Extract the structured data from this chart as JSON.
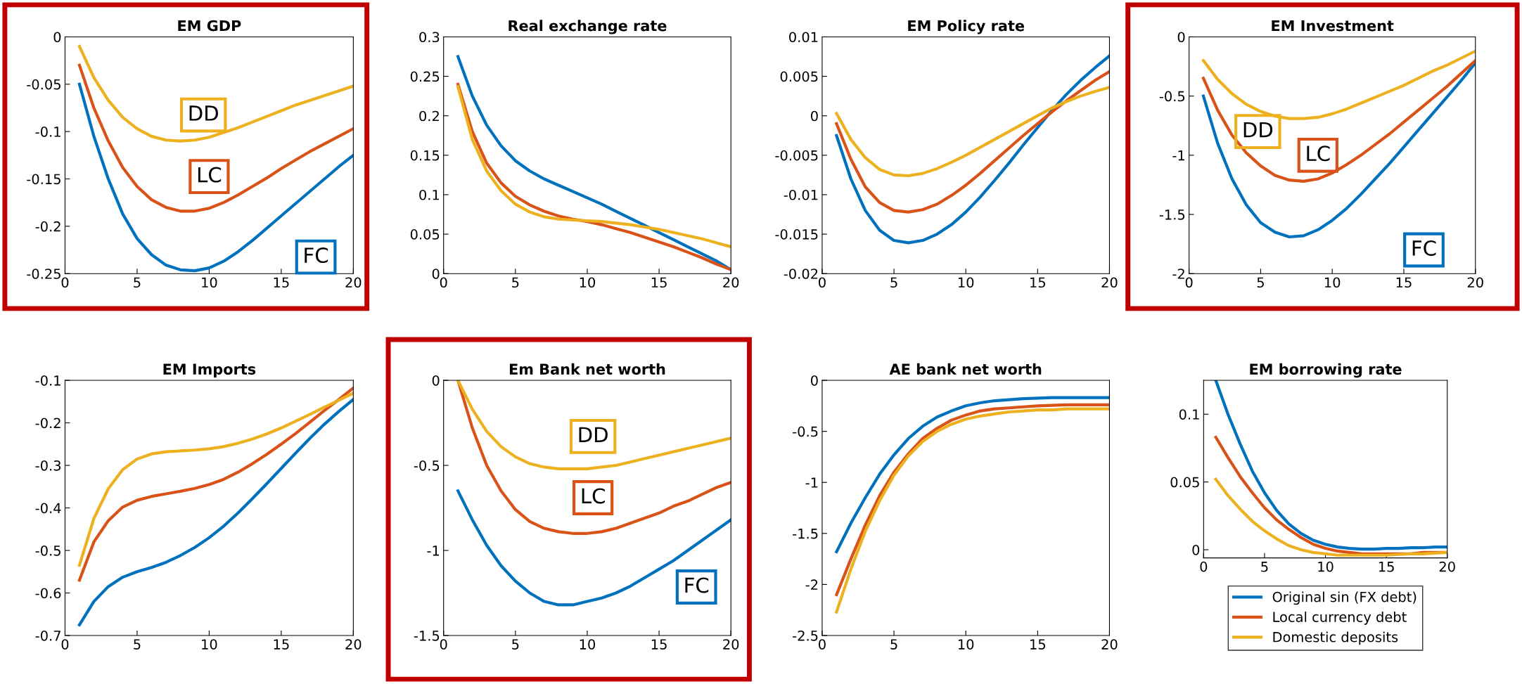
{
  "chart_data": [
    {
      "type": "line",
      "title": "EM GDP",
      "x": [
        1,
        2,
        3,
        4,
        5,
        6,
        7,
        8,
        9,
        10,
        11,
        12,
        13,
        14,
        15,
        16,
        17,
        18,
        19,
        20
      ],
      "xlim": [
        0,
        20
      ],
      "xticks": [
        0,
        5,
        10,
        15,
        20
      ],
      "ylim": [
        -0.25,
        0
      ],
      "yticks": [
        -0.25,
        -0.2,
        -0.15,
        -0.1,
        -0.05,
        0
      ],
      "series": [
        {
          "color": "#0072bd",
          "values": [
            -0.05,
            -0.105,
            -0.15,
            -0.187,
            -0.213,
            -0.23,
            -0.241,
            -0.246,
            -0.247,
            -0.244,
            -0.237,
            -0.227,
            -0.215,
            -0.202,
            -0.189,
            -0.176,
            -0.163,
            -0.15,
            -0.137,
            -0.125
          ]
        },
        {
          "color": "#d95319",
          "values": [
            -0.03,
            -0.075,
            -0.11,
            -0.138,
            -0.158,
            -0.172,
            -0.18,
            -0.184,
            -0.184,
            -0.181,
            -0.175,
            -0.167,
            -0.158,
            -0.149,
            -0.139,
            -0.13,
            -0.121,
            -0.113,
            -0.105,
            -0.097
          ]
        },
        {
          "color": "#edb120",
          "values": [
            -0.01,
            -0.043,
            -0.067,
            -0.085,
            -0.097,
            -0.105,
            -0.109,
            -0.11,
            -0.109,
            -0.106,
            -0.101,
            -0.096,
            -0.09,
            -0.084,
            -0.078,
            -0.072,
            -0.067,
            -0.062,
            -0.057,
            -0.052
          ]
        }
      ],
      "annotations": [
        "DD",
        "LC",
        "FC"
      ]
    },
    {
      "type": "line",
      "title": "Real exchange rate",
      "x": [
        1,
        2,
        3,
        4,
        5,
        6,
        7,
        8,
        9,
        10,
        11,
        12,
        13,
        14,
        15,
        16,
        17,
        18,
        19,
        20
      ],
      "xlim": [
        0,
        20
      ],
      "xticks": [
        0,
        5,
        10,
        15,
        20
      ],
      "ylim": [
        0,
        0.3
      ],
      "yticks": [
        0,
        0.05,
        0.1,
        0.15,
        0.2,
        0.25,
        0.3
      ],
      "series": [
        {
          "color": "#0072bd",
          "values": [
            0.275,
            0.225,
            0.188,
            0.162,
            0.143,
            0.13,
            0.12,
            0.112,
            0.104,
            0.096,
            0.088,
            0.079,
            0.07,
            0.061,
            0.052,
            0.043,
            0.034,
            0.025,
            0.016,
            0.005
          ]
        },
        {
          "color": "#d95319",
          "values": [
            0.24,
            0.18,
            0.14,
            0.115,
            0.098,
            0.087,
            0.079,
            0.073,
            0.069,
            0.066,
            0.062,
            0.057,
            0.052,
            0.046,
            0.04,
            0.034,
            0.027,
            0.02,
            0.012,
            0.005
          ]
        },
        {
          "color": "#edb120",
          "values": [
            0.237,
            0.17,
            0.13,
            0.105,
            0.088,
            0.078,
            0.072,
            0.069,
            0.068,
            0.067,
            0.066,
            0.064,
            0.062,
            0.059,
            0.056,
            0.052,
            0.048,
            0.044,
            0.039,
            0.034
          ]
        }
      ]
    },
    {
      "type": "line",
      "title": "EM Policy rate",
      "x": [
        1,
        2,
        3,
        4,
        5,
        6,
        7,
        8,
        9,
        10,
        11,
        12,
        13,
        14,
        15,
        16,
        17,
        18,
        19,
        20
      ],
      "xlim": [
        0,
        20
      ],
      "xticks": [
        0,
        5,
        10,
        15,
        20
      ],
      "ylim": [
        -0.02,
        0.01
      ],
      "yticks": [
        -0.02,
        -0.015,
        -0.01,
        -0.005,
        0,
        0.005,
        0.01
      ],
      "series": [
        {
          "color": "#0072bd",
          "values": [
            -0.0025,
            -0.008,
            -0.012,
            -0.0145,
            -0.0158,
            -0.0161,
            -0.0158,
            -0.015,
            -0.0138,
            -0.0122,
            -0.0103,
            -0.0082,
            -0.006,
            -0.0037,
            -0.0015,
            0.0007,
            0.0027,
            0.0045,
            0.0061,
            0.0076
          ]
        },
        {
          "color": "#d95319",
          "values": [
            -0.001,
            -0.0055,
            -0.009,
            -0.011,
            -0.012,
            -0.0122,
            -0.0119,
            -0.0112,
            -0.0101,
            -0.0088,
            -0.0073,
            -0.0057,
            -0.0041,
            -0.0025,
            -0.001,
            0.0005,
            0.0019,
            0.0032,
            0.0045,
            0.0056
          ]
        },
        {
          "color": "#edb120",
          "values": [
            0.0003,
            -0.003,
            -0.0053,
            -0.0068,
            -0.0075,
            -0.0076,
            -0.0073,
            -0.0067,
            -0.0059,
            -0.005,
            -0.004,
            -0.003,
            -0.002,
            -0.001,
            0.0,
            0.001,
            0.0018,
            0.0025,
            0.0031,
            0.0036
          ]
        }
      ]
    },
    {
      "type": "line",
      "title": "EM Investment",
      "x": [
        1,
        2,
        3,
        4,
        5,
        6,
        7,
        8,
        9,
        10,
        11,
        12,
        13,
        14,
        15,
        16,
        17,
        18,
        19,
        20
      ],
      "xlim": [
        0,
        20
      ],
      "xticks": [
        0,
        5,
        10,
        15,
        20
      ],
      "ylim": [
        -2,
        0
      ],
      "yticks": [
        -2,
        -1.5,
        -1,
        -0.5,
        0
      ],
      "series": [
        {
          "color": "#0072bd",
          "values": [
            -0.5,
            -0.9,
            -1.2,
            -1.42,
            -1.57,
            -1.65,
            -1.69,
            -1.68,
            -1.63,
            -1.55,
            -1.45,
            -1.33,
            -1.2,
            -1.07,
            -0.93,
            -0.79,
            -0.65,
            -0.51,
            -0.37,
            -0.22
          ]
        },
        {
          "color": "#d95319",
          "values": [
            -0.35,
            -0.62,
            -0.83,
            -0.98,
            -1.09,
            -1.17,
            -1.21,
            -1.22,
            -1.2,
            -1.15,
            -1.08,
            -1.0,
            -0.91,
            -0.82,
            -0.72,
            -0.62,
            -0.52,
            -0.42,
            -0.31,
            -0.2
          ]
        },
        {
          "color": "#edb120",
          "values": [
            -0.2,
            -0.36,
            -0.48,
            -0.57,
            -0.63,
            -0.67,
            -0.69,
            -0.69,
            -0.68,
            -0.65,
            -0.61,
            -0.56,
            -0.51,
            -0.46,
            -0.41,
            -0.35,
            -0.29,
            -0.24,
            -0.18,
            -0.12
          ]
        }
      ],
      "annotations": [
        "DD",
        "LC",
        "FC"
      ]
    },
    {
      "type": "line",
      "title": "EM Imports",
      "x": [
        1,
        2,
        3,
        4,
        5,
        6,
        7,
        8,
        9,
        10,
        11,
        12,
        13,
        14,
        15,
        16,
        17,
        18,
        19,
        20
      ],
      "xlim": [
        0,
        20
      ],
      "xticks": [
        0,
        5,
        10,
        15,
        20
      ],
      "ylim": [
        -0.7,
        -0.1
      ],
      "yticks": [
        -0.7,
        -0.6,
        -0.5,
        -0.4,
        -0.3,
        -0.2,
        -0.1
      ],
      "series": [
        {
          "color": "#0072bd",
          "values": [
            -0.675,
            -0.62,
            -0.585,
            -0.563,
            -0.55,
            -0.54,
            -0.528,
            -0.512,
            -0.493,
            -0.47,
            -0.443,
            -0.412,
            -0.378,
            -0.343,
            -0.307,
            -0.271,
            -0.236,
            -0.203,
            -0.173,
            -0.145
          ]
        },
        {
          "color": "#d95319",
          "values": [
            -0.57,
            -0.48,
            -0.43,
            -0.398,
            -0.382,
            -0.373,
            -0.367,
            -0.361,
            -0.354,
            -0.345,
            -0.333,
            -0.316,
            -0.296,
            -0.274,
            -0.25,
            -0.225,
            -0.198,
            -0.171,
            -0.145,
            -0.118
          ]
        },
        {
          "color": "#edb120",
          "values": [
            -0.535,
            -0.425,
            -0.355,
            -0.31,
            -0.285,
            -0.273,
            -0.268,
            -0.266,
            -0.264,
            -0.261,
            -0.256,
            -0.248,
            -0.238,
            -0.226,
            -0.212,
            -0.196,
            -0.18,
            -0.163,
            -0.147,
            -0.13
          ]
        }
      ]
    },
    {
      "type": "line",
      "title": "Em Bank net worth",
      "x": [
        1,
        2,
        3,
        4,
        5,
        6,
        7,
        8,
        9,
        10,
        11,
        12,
        13,
        14,
        15,
        16,
        17,
        18,
        19,
        20
      ],
      "xlim": [
        0,
        20
      ],
      "xticks": [
        0,
        5,
        10,
        15,
        20
      ],
      "ylim": [
        -1.5,
        0
      ],
      "yticks": [
        -1.5,
        -1,
        -0.5,
        0
      ],
      "series": [
        {
          "color": "#0072bd",
          "values": [
            -0.65,
            -0.82,
            -0.97,
            -1.09,
            -1.18,
            -1.25,
            -1.3,
            -1.32,
            -1.32,
            -1.3,
            -1.28,
            -1.25,
            -1.21,
            -1.16,
            -1.11,
            -1.06,
            -1.0,
            -0.94,
            -0.88,
            -0.82
          ]
        },
        {
          "color": "#d95319",
          "values": [
            0,
            -0.28,
            -0.5,
            -0.65,
            -0.76,
            -0.83,
            -0.87,
            -0.89,
            -0.9,
            -0.9,
            -0.89,
            -0.87,
            -0.84,
            -0.81,
            -0.78,
            -0.74,
            -0.71,
            -0.67,
            -0.63,
            -0.6
          ]
        },
        {
          "color": "#edb120",
          "values": [
            0,
            -0.17,
            -0.3,
            -0.39,
            -0.45,
            -0.49,
            -0.51,
            -0.52,
            -0.52,
            -0.52,
            -0.51,
            -0.5,
            -0.48,
            -0.46,
            -0.44,
            -0.42,
            -0.4,
            -0.38,
            -0.36,
            -0.34
          ]
        }
      ],
      "annotations": [
        "DD",
        "LC",
        "FC"
      ]
    },
    {
      "type": "line",
      "title": "AE bank net worth",
      "x": [
        1,
        2,
        3,
        4,
        5,
        6,
        7,
        8,
        9,
        10,
        11,
        12,
        13,
        14,
        15,
        16,
        17,
        18,
        19,
        20
      ],
      "xlim": [
        0,
        20
      ],
      "xticks": [
        0,
        5,
        10,
        15,
        20
      ],
      "ylim": [
        -2.5,
        0
      ],
      "yticks": [
        -2.5,
        -2,
        -1.5,
        -1,
        -0.5,
        0
      ],
      "series": [
        {
          "color": "#0072bd",
          "values": [
            -1.68,
            -1.4,
            -1.15,
            -0.92,
            -0.73,
            -0.57,
            -0.45,
            -0.36,
            -0.3,
            -0.25,
            -0.22,
            -0.2,
            -0.19,
            -0.18,
            -0.175,
            -0.17,
            -0.17,
            -0.17,
            -0.17,
            -0.17
          ]
        },
        {
          "color": "#d95319",
          "values": [
            -2.1,
            -1.75,
            -1.42,
            -1.13,
            -0.9,
            -0.72,
            -0.57,
            -0.47,
            -0.39,
            -0.34,
            -0.3,
            -0.28,
            -0.27,
            -0.26,
            -0.25,
            -0.245,
            -0.24,
            -0.24,
            -0.24,
            -0.24
          ]
        },
        {
          "color": "#edb120",
          "values": [
            -2.27,
            -1.85,
            -1.48,
            -1.18,
            -0.93,
            -0.74,
            -0.6,
            -0.5,
            -0.43,
            -0.38,
            -0.35,
            -0.33,
            -0.31,
            -0.3,
            -0.29,
            -0.29,
            -0.28,
            -0.28,
            -0.28,
            -0.28
          ]
        }
      ]
    },
    {
      "type": "line",
      "title": "EM borrowing rate",
      "x": [
        1,
        2,
        3,
        4,
        5,
        6,
        7,
        8,
        9,
        10,
        11,
        12,
        13,
        14,
        15,
        16,
        17,
        18,
        19,
        20
      ],
      "xlim": [
        0,
        20
      ],
      "xticks": [
        0,
        5,
        10,
        15,
        20
      ],
      "ylim": [
        -0.006,
        0.125
      ],
      "yticks": [
        0,
        0.05,
        0.1
      ],
      "legend": "bottom",
      "series": [
        {
          "name": "Original sin (FX debt)",
          "color": "#0072bd",
          "values": [
            0.125,
            0.1,
            0.078,
            0.058,
            0.042,
            0.029,
            0.019,
            0.012,
            0.007,
            0.004,
            0.002,
            0.001,
            0.0005,
            0.0005,
            0.001,
            0.001,
            0.0015,
            0.0015,
            0.002,
            0.002
          ]
        },
        {
          "name": "Local currency debt",
          "color": "#d95319",
          "values": [
            0.083,
            0.068,
            0.054,
            0.042,
            0.031,
            0.022,
            0.015,
            0.009,
            0.004,
            0.001,
            -0.001,
            -0.002,
            -0.003,
            -0.003,
            -0.003,
            -0.003,
            -0.003,
            -0.002,
            -0.002,
            -0.002
          ]
        },
        {
          "name": "Domestic deposits",
          "color": "#edb120",
          "values": [
            0.052,
            0.04,
            0.03,
            0.021,
            0.014,
            0.008,
            0.003,
            0.0,
            -0.002,
            -0.003,
            -0.004,
            -0.004,
            -0.004,
            -0.004,
            -0.004,
            -0.0035,
            -0.003,
            -0.003,
            -0.0025,
            -0.002
          ]
        }
      ]
    }
  ]
}
